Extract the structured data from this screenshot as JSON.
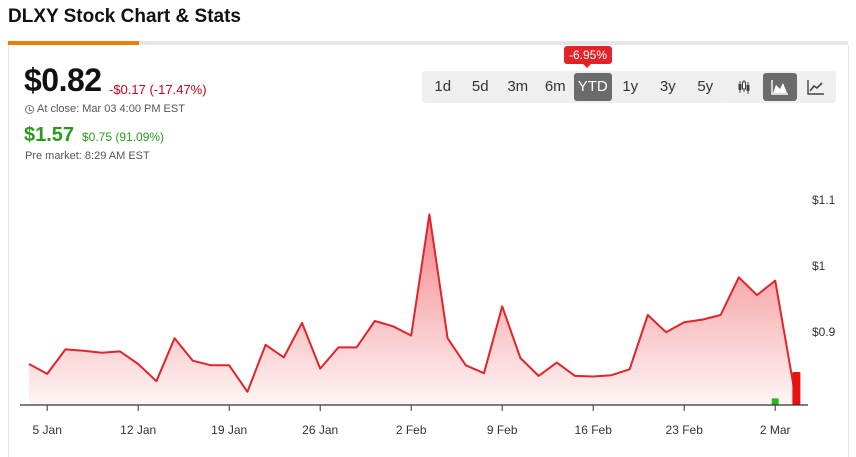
{
  "page": {
    "title": "DLXY Stock Chart & Stats"
  },
  "quote": {
    "price": "$0.82",
    "change": "-$0.17 (-17.47%)",
    "close_label": "At close: Mar 03 4:00 PM EST",
    "pre_price": "$1.57",
    "pre_change": "$0.75 (91.09%)",
    "pre_label": "Pre market: 8:29 AM EST"
  },
  "range_tabs": {
    "items": [
      "1d",
      "5d",
      "3m",
      "6m",
      "YTD",
      "1y",
      "3y",
      "5y"
    ],
    "active": "YTD",
    "badge": "-6.95%"
  },
  "chart_types": {
    "items": [
      {
        "name": "candlestick-icon",
        "active": false
      },
      {
        "name": "mountain-icon",
        "active": true
      },
      {
        "name": "line-chart-icon",
        "active": false
      }
    ]
  },
  "colors": {
    "down": "#d0021b",
    "up": "#2a9a1e",
    "accent": "#ef7d00",
    "line": "#e0242a"
  },
  "chart_data": {
    "type": "area",
    "title": "",
    "xlabel": "",
    "ylabel": "",
    "x_ticks": [
      "5 Jan",
      "12 Jan",
      "19 Jan",
      "26 Jan",
      "2 Feb",
      "9 Feb",
      "16 Feb",
      "23 Feb",
      "2 Mar"
    ],
    "x_tick_index": [
      1,
      6,
      11,
      16,
      21,
      26,
      31,
      36,
      41
    ],
    "y_ticks": [
      0.9,
      1.0,
      1.1
    ],
    "y_tick_labels": [
      "$0.9",
      "$1",
      "$1.1"
    ],
    "ylim": [
      0.79,
      1.13
    ],
    "series": [
      {
        "values": [
          0.852,
          0.837,
          0.874,
          0.872,
          0.869,
          0.871,
          0.852,
          0.826,
          0.891,
          0.857,
          0.85,
          0.85,
          0.81,
          0.881,
          0.862,
          0.914,
          0.845,
          0.877,
          0.877,
          0.917,
          0.909,
          0.895,
          1.078,
          0.891,
          0.85,
          0.838,
          0.939,
          0.861,
          0.834,
          0.854,
          0.834,
          0.833,
          0.835,
          0.844,
          0.926,
          0.9,
          0.915,
          0.919,
          0.926,
          0.983,
          0.956,
          0.978,
          0.82
        ]
      }
    ],
    "volume_marks": [
      {
        "index": 41,
        "level": 0.2,
        "direction": "up"
      },
      {
        "index": 42,
        "level": 1.0,
        "direction": "down"
      }
    ],
    "grid": false
  }
}
